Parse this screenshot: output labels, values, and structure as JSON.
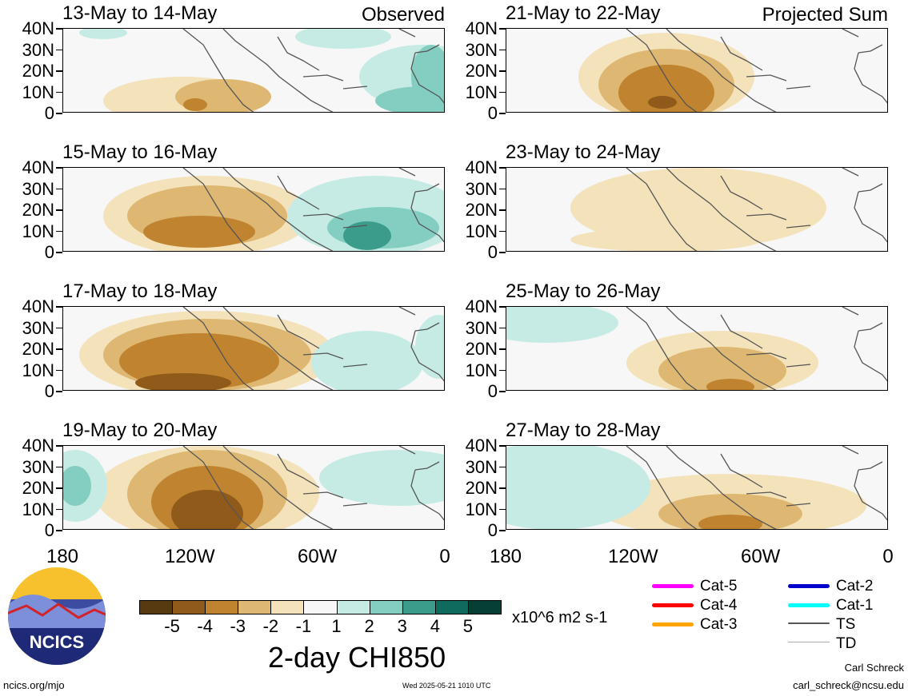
{
  "panels_left": [
    {
      "title": "13-May to 14-May",
      "corner": "Observed"
    },
    {
      "title": "15-May to 16-May",
      "corner": ""
    },
    {
      "title": "17-May to 18-May",
      "corner": ""
    },
    {
      "title": "19-May to 20-May",
      "corner": ""
    }
  ],
  "panels_right": [
    {
      "title": "21-May to 22-May",
      "corner": "Projected Sum"
    },
    {
      "title": "23-May to 24-May",
      "corner": ""
    },
    {
      "title": "25-May to 26-May",
      "corner": ""
    },
    {
      "title": "27-May to 28-May",
      "corner": ""
    }
  ],
  "y_ticks": [
    "40N",
    "30N",
    "20N",
    "10N",
    "0"
  ],
  "x_ticks": [
    "180",
    "120W",
    "60W",
    "0"
  ],
  "colorbar": {
    "labels": [
      "-5",
      "-4",
      "-3",
      "-2",
      "-1",
      "1",
      "2",
      "3",
      "4",
      "5"
    ],
    "colors": [
      "#583a10",
      "#8f5a1a",
      "#c0832f",
      "#deb872",
      "#f4e2ba",
      "#f7f7f7",
      "#c6ebe4",
      "#83cec1",
      "#3c9c8c",
      "#0f6b5e",
      "#063f34"
    ],
    "units": "x10^6 m2 s-1",
    "title": "2-day CHI850"
  },
  "storm_legend": [
    {
      "label": "Cat-5",
      "color": "#ff00ff"
    },
    {
      "label": "Cat-4",
      "color": "#ff0000"
    },
    {
      "label": "Cat-3",
      "color": "#ffa500"
    },
    {
      "label": "Cat-2",
      "color": "#0000cd"
    },
    {
      "label": "Cat-1",
      "color": "#00ffff"
    },
    {
      "label": "TS",
      "color": "#555555"
    },
    {
      "label": "TD",
      "color": "#aaaaaa"
    }
  ],
  "logo_text": "NCICS",
  "footer": {
    "url": "ncics.org/mjo",
    "timestamp": "Wed 2025-05-21 1010 UTC",
    "author": "Carl Schreck",
    "email": "carl_schreck@ncsu.edu"
  }
}
